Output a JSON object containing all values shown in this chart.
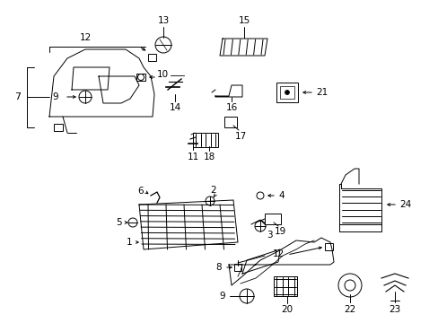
{
  "bg_color": "#ffffff",
  "fig_width": 4.89,
  "fig_height": 3.6,
  "dpi": 100,
  "line_color": "#000000",
  "lw": 0.7
}
